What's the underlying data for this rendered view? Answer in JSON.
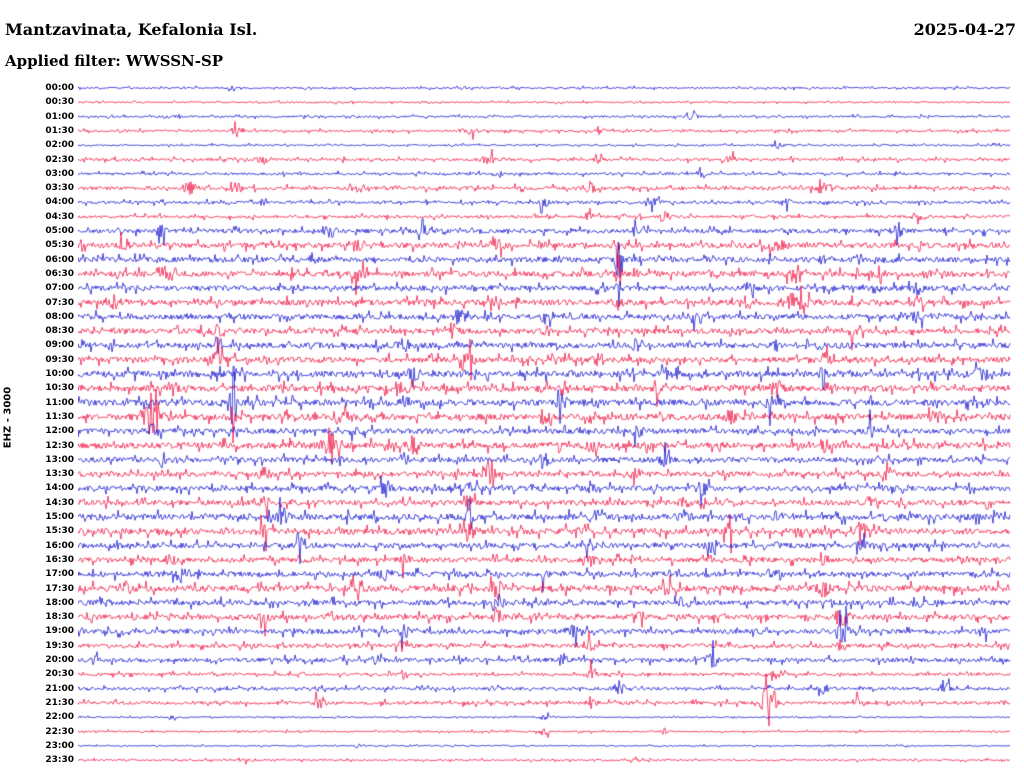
{
  "header": {
    "station_title": "Mantzavinata, Kefalonia Isl.",
    "date": "2025-04-27",
    "filter_label": "Applied filter: WWSSN-SP"
  },
  "y_axis_label": "EHZ - 3000",
  "colors": {
    "blue": "#0000cc",
    "red": "#ee0033",
    "text": "#000000",
    "background": "#ffffff"
  },
  "chart_data": {
    "type": "line",
    "subtype": "helicorder-seismogram",
    "title": "Mantzavinata, Kefalonia Isl.",
    "date": "2025-04-27",
    "filter": "WWSSN-SP",
    "channel_scale_label": "EHZ - 3000",
    "minutes_per_row": 30,
    "num_rows": 48,
    "trace_color_order": [
      "blue",
      "red"
    ],
    "legend": "none",
    "grid": false,
    "rows": [
      {
        "t": "00:00",
        "color": "blue",
        "n": 0.5,
        "e": [
          [
            0.165,
            2.5,
            0.003
          ]
        ]
      },
      {
        "t": "00:30",
        "color": "red",
        "n": 0.45,
        "e": []
      },
      {
        "t": "01:00",
        "color": "blue",
        "n": 0.55,
        "e": [
          [
            0.66,
            2,
            0.004
          ]
        ]
      },
      {
        "t": "01:30",
        "color": "red",
        "n": 0.6,
        "e": [
          [
            0.17,
            4,
            0.003
          ],
          [
            0.42,
            2,
            0.005
          ],
          [
            0.56,
            2.5,
            0.004
          ]
        ]
      },
      {
        "t": "02:00",
        "color": "blue",
        "n": 0.5,
        "e": [
          [
            0.75,
            1.8,
            0.004
          ]
        ]
      },
      {
        "t": "02:30",
        "color": "red",
        "n": 0.8,
        "e": [
          [
            0.2,
            2.5,
            0.005
          ],
          [
            0.44,
            2.5,
            0.005
          ],
          [
            0.56,
            2,
            0.004
          ],
          [
            0.7,
            2,
            0.004
          ]
        ]
      },
      {
        "t": "03:00",
        "color": "blue",
        "n": 0.7,
        "e": [
          [
            0.45,
            2,
            0.004
          ],
          [
            0.67,
            2.2,
            0.004
          ]
        ]
      },
      {
        "t": "03:30",
        "color": "red",
        "n": 1.0,
        "e": [
          [
            0.12,
            3,
            0.005
          ],
          [
            0.17,
            3,
            0.004
          ],
          [
            0.3,
            2.2,
            0.004
          ],
          [
            0.55,
            2.5,
            0.004
          ],
          [
            0.8,
            3,
            0.006
          ]
        ]
      },
      {
        "t": "04:00",
        "color": "blue",
        "n": 0.8,
        "e": [
          [
            0.2,
            2,
            0.004
          ],
          [
            0.5,
            3,
            0.004
          ],
          [
            0.62,
            2.5,
            0.004
          ],
          [
            0.76,
            2.2,
            0.004
          ]
        ]
      },
      {
        "t": "04:30",
        "color": "red",
        "n": 0.8,
        "e": [
          [
            0.55,
            2.5,
            0.005
          ],
          [
            0.63,
            2.5,
            0.004
          ],
          [
            0.9,
            2,
            0.004
          ]
        ]
      },
      {
        "t": "05:00",
        "color": "blue",
        "n": 1.2,
        "e": [
          [
            0.09,
            3.5,
            0.004
          ],
          [
            0.27,
            3.5,
            0.004
          ],
          [
            0.37,
            3,
            0.004
          ],
          [
            0.6,
            3,
            0.004
          ],
          [
            0.88,
            3,
            0.004
          ]
        ]
      },
      {
        "t": "05:30",
        "color": "red",
        "n": 1.5,
        "e": [
          [
            0.05,
            3,
            0.004
          ],
          [
            0.3,
            3,
            0.005
          ],
          [
            0.45,
            3.5,
            0.005
          ],
          [
            0.58,
            4,
            0.004
          ],
          [
            0.75,
            3,
            0.005
          ]
        ]
      },
      {
        "t": "06:00",
        "color": "blue",
        "n": 1.5,
        "e": [
          [
            0.58,
            14,
            0.0022
          ],
          [
            0.25,
            3,
            0.004
          ],
          [
            0.8,
            3,
            0.005
          ]
        ]
      },
      {
        "t": "06:30",
        "color": "red",
        "n": 1.6,
        "e": [
          [
            0.1,
            3.5,
            0.005
          ],
          [
            0.3,
            3.5,
            0.005
          ],
          [
            0.58,
            6,
            0.0025
          ],
          [
            0.77,
            4.5,
            0.006
          ],
          [
            0.86,
            3.5,
            0.005
          ]
        ]
      },
      {
        "t": "07:00",
        "color": "blue",
        "n": 1.5,
        "e": [
          [
            0.58,
            10,
            0.0018
          ],
          [
            0.05,
            3,
            0.004
          ],
          [
            0.72,
            3,
            0.004
          ],
          [
            0.9,
            3.5,
            0.004
          ]
        ]
      },
      {
        "t": "07:30",
        "color": "red",
        "n": 1.6,
        "e": [
          [
            0.04,
            3.5,
            0.004
          ],
          [
            0.45,
            3,
            0.004
          ],
          [
            0.58,
            4,
            0.0025
          ],
          [
            0.77,
            6,
            0.008
          ],
          [
            0.9,
            3,
            0.004
          ]
        ]
      },
      {
        "t": "08:00",
        "color": "blue",
        "n": 1.5,
        "e": [
          [
            0.41,
            5,
            0.004
          ],
          [
            0.5,
            3.5,
            0.004
          ],
          [
            0.66,
            3,
            0.004
          ],
          [
            0.9,
            3,
            0.004
          ]
        ]
      },
      {
        "t": "08:30",
        "color": "red",
        "n": 1.5,
        "e": [
          [
            0.15,
            3,
            0.004
          ],
          [
            0.4,
            4,
            0.005
          ],
          [
            0.5,
            3.5,
            0.004
          ],
          [
            0.7,
            3,
            0.004
          ],
          [
            0.83,
            3.5,
            0.005
          ]
        ]
      },
      {
        "t": "09:00",
        "color": "blue",
        "n": 1.6,
        "e": [
          [
            0.15,
            12,
            0.0022
          ],
          [
            0.35,
            3,
            0.004
          ],
          [
            0.6,
            3,
            0.004
          ],
          [
            0.75,
            3,
            0.004
          ]
        ]
      },
      {
        "t": "09:30",
        "color": "red",
        "n": 1.6,
        "e": [
          [
            0.15,
            5,
            0.004
          ],
          [
            0.42,
            4,
            0.005
          ],
          [
            0.56,
            3,
            0.004
          ],
          [
            0.8,
            3,
            0.004
          ]
        ]
      },
      {
        "t": "10:00",
        "color": "blue",
        "n": 1.8,
        "e": [
          [
            0.36,
            4,
            0.004
          ],
          [
            0.63,
            4,
            0.004
          ],
          [
            0.8,
            3,
            0.004
          ],
          [
            0.97,
            4.5,
            0.004
          ]
        ]
      },
      {
        "t": "10:30",
        "color": "red",
        "n": 1.8,
        "e": [
          [
            0.1,
            4,
            0.005
          ],
          [
            0.35,
            3,
            0.004
          ],
          [
            0.62,
            3,
            0.004
          ],
          [
            0.75,
            4,
            0.005
          ]
        ]
      },
      {
        "t": "11:00",
        "color": "blue",
        "n": 1.8,
        "e": [
          [
            0.165,
            12,
            0.0022
          ],
          [
            0.35,
            3,
            0.004
          ],
          [
            0.52,
            4,
            0.004
          ],
          [
            0.74,
            4.5,
            0.004
          ]
        ]
      },
      {
        "t": "11:30",
        "color": "red",
        "n": 1.8,
        "e": [
          [
            0.08,
            10,
            0.008
          ],
          [
            0.165,
            5,
            0.003
          ],
          [
            0.28,
            3.5,
            0.004
          ],
          [
            0.5,
            4,
            0.004
          ],
          [
            0.7,
            3,
            0.004
          ],
          [
            0.92,
            4,
            0.004
          ]
        ]
      },
      {
        "t": "12:00",
        "color": "blue",
        "n": 1.5,
        "e": [
          [
            0.08,
            4,
            0.004
          ],
          [
            0.3,
            3,
            0.004
          ],
          [
            0.6,
            3,
            0.004
          ],
          [
            0.85,
            4,
            0.004
          ]
        ]
      },
      {
        "t": "12:30",
        "color": "red",
        "n": 1.8,
        "e": [
          [
            0.27,
            9,
            0.006
          ],
          [
            0.36,
            6,
            0.004
          ],
          [
            0.55,
            3,
            0.004
          ],
          [
            0.8,
            3,
            0.004
          ]
        ]
      },
      {
        "t": "13:00",
        "color": "blue",
        "n": 1.5,
        "e": [
          [
            0.09,
            5,
            0.003
          ],
          [
            0.35,
            3,
            0.004
          ],
          [
            0.5,
            3,
            0.004
          ],
          [
            0.63,
            3,
            0.004
          ]
        ]
      },
      {
        "t": "13:30",
        "color": "red",
        "n": 1.5,
        "e": [
          [
            0.44,
            6,
            0.005
          ],
          [
            0.2,
            3,
            0.004
          ],
          [
            0.6,
            3,
            0.004
          ],
          [
            0.87,
            3,
            0.004
          ]
        ]
      },
      {
        "t": "14:00",
        "color": "blue",
        "n": 1.5,
        "e": [
          [
            0.33,
            4,
            0.004
          ],
          [
            0.42,
            3,
            0.004
          ],
          [
            0.55,
            3,
            0.004
          ],
          [
            0.67,
            4,
            0.004
          ]
        ]
      },
      {
        "t": "14:30",
        "color": "red",
        "n": 1.5,
        "e": [
          [
            0.2,
            3,
            0.004
          ],
          [
            0.42,
            5,
            0.003
          ],
          [
            0.65,
            3,
            0.004
          ],
          [
            0.85,
            3,
            0.004
          ]
        ]
      },
      {
        "t": "15:00",
        "color": "blue",
        "n": 1.8,
        "e": [
          [
            0.42,
            9,
            0.0025
          ],
          [
            0.22,
            4,
            0.004
          ],
          [
            0.65,
            3.5,
            0.004
          ],
          [
            0.75,
            3,
            0.004
          ]
        ]
      },
      {
        "t": "15:30",
        "color": "red",
        "n": 1.8,
        "e": [
          [
            0.2,
            3,
            0.004
          ],
          [
            0.42,
            4,
            0.004
          ],
          [
            0.7,
            4,
            0.004
          ],
          [
            0.84,
            5,
            0.004
          ]
        ]
      },
      {
        "t": "16:00",
        "color": "blue",
        "n": 1.5,
        "e": [
          [
            0.24,
            4,
            0.004
          ],
          [
            0.55,
            3,
            0.004
          ],
          [
            0.68,
            3.5,
            0.004
          ],
          [
            0.84,
            4,
            0.004
          ]
        ]
      },
      {
        "t": "16:30",
        "color": "red",
        "n": 1.4,
        "e": [
          [
            0.1,
            3,
            0.004
          ],
          [
            0.35,
            3,
            0.004
          ],
          [
            0.55,
            3,
            0.004
          ],
          [
            0.8,
            2.5,
            0.004
          ]
        ]
      },
      {
        "t": "17:00",
        "color": "blue",
        "n": 1.5,
        "e": [
          [
            0.11,
            4,
            0.004
          ],
          [
            0.33,
            4,
            0.004
          ],
          [
            0.5,
            3,
            0.004
          ],
          [
            0.75,
            3,
            0.004
          ]
        ]
      },
      {
        "t": "17:30",
        "color": "red",
        "n": 1.8,
        "e": [
          [
            0.05,
            4,
            0.004
          ],
          [
            0.3,
            3,
            0.004
          ],
          [
            0.45,
            5,
            0.004
          ],
          [
            0.63,
            3,
            0.004
          ],
          [
            0.8,
            4,
            0.004
          ]
        ]
      },
      {
        "t": "18:00",
        "color": "blue",
        "n": 1.5,
        "e": [
          [
            0.25,
            3,
            0.004
          ],
          [
            0.45,
            4,
            0.004
          ],
          [
            0.65,
            3,
            0.004
          ],
          [
            0.9,
            3.5,
            0.004
          ]
        ]
      },
      {
        "t": "18:30",
        "color": "red",
        "n": 1.5,
        "e": [
          [
            0.2,
            3,
            0.004
          ],
          [
            0.45,
            6,
            0.004
          ],
          [
            0.6,
            3,
            0.004
          ],
          [
            0.82,
            5,
            0.005
          ]
        ]
      },
      {
        "t": "19:00",
        "color": "blue",
        "n": 1.4,
        "e": [
          [
            0.35,
            3,
            0.004
          ],
          [
            0.53,
            4,
            0.004
          ],
          [
            0.82,
            8,
            0.004
          ],
          [
            0.97,
            4,
            0.003
          ]
        ]
      },
      {
        "t": "19:30",
        "color": "red",
        "n": 1.2,
        "e": [
          [
            0.35,
            3,
            0.004
          ],
          [
            0.55,
            3,
            0.004
          ],
          [
            0.82,
            5,
            0.003
          ]
        ]
      },
      {
        "t": "20:00",
        "color": "blue",
        "n": 1.2,
        "e": [
          [
            0.02,
            4,
            0.003
          ],
          [
            0.32,
            4,
            0.004
          ],
          [
            0.52,
            3,
            0.004
          ],
          [
            0.68,
            4.5,
            0.004
          ]
        ]
      },
      {
        "t": "20:30",
        "color": "red",
        "n": 0.8,
        "e": [
          [
            0.35,
            2.5,
            0.004
          ],
          [
            0.55,
            3,
            0.004
          ],
          [
            0.75,
            2.5,
            0.004
          ]
        ]
      },
      {
        "t": "21:00",
        "color": "blue",
        "n": 0.9,
        "e": [
          [
            0.58,
            4,
            0.004
          ],
          [
            0.8,
            3,
            0.004
          ],
          [
            0.93,
            3,
            0.004
          ]
        ]
      },
      {
        "t": "21:30",
        "color": "red",
        "n": 0.9,
        "e": [
          [
            0.26,
            4,
            0.004
          ],
          [
            0.55,
            3,
            0.004
          ],
          [
            0.74,
            12,
            0.006
          ],
          [
            0.84,
            5,
            0.003
          ]
        ]
      },
      {
        "t": "22:00",
        "color": "blue",
        "n": 0.35,
        "e": [
          [
            0.1,
            2,
            0.003
          ],
          [
            0.5,
            2,
            0.003
          ]
        ]
      },
      {
        "t": "22:30",
        "color": "red",
        "n": 0.45,
        "e": [
          [
            0.5,
            3,
            0.003
          ],
          [
            0.63,
            2.5,
            0.003
          ]
        ]
      },
      {
        "t": "23:00",
        "color": "blue",
        "n": 0.35,
        "e": [
          [
            0.3,
            1.5,
            0.003
          ]
        ]
      },
      {
        "t": "23:30",
        "color": "red",
        "n": 0.45,
        "e": [
          [
            0.18,
            3,
            0.003
          ],
          [
            0.6,
            2,
            0.003
          ]
        ]
      }
    ]
  }
}
